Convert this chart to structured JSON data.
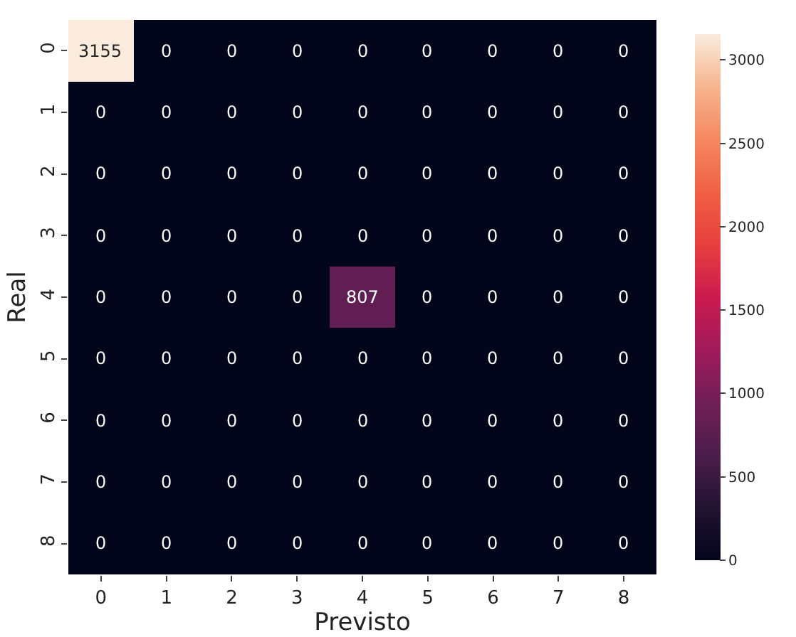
{
  "chart_data": {
    "type": "heatmap",
    "xlabel": "Previsto",
    "ylabel": "Real",
    "categories": [
      "0",
      "1",
      "2",
      "3",
      "4",
      "5",
      "6",
      "7",
      "8"
    ],
    "y_categories": [
      "0",
      "1",
      "2",
      "3",
      "4",
      "5",
      "6",
      "7",
      "8"
    ],
    "cells": [
      [
        3155,
        0,
        0,
        0,
        0,
        0,
        0,
        0,
        0
      ],
      [
        0,
        0,
        0,
        0,
        0,
        0,
        0,
        0,
        0
      ],
      [
        0,
        0,
        0,
        0,
        0,
        0,
        0,
        0,
        0
      ],
      [
        0,
        0,
        0,
        0,
        0,
        0,
        0,
        0,
        0
      ],
      [
        0,
        0,
        0,
        0,
        807,
        0,
        0,
        0,
        0
      ],
      [
        0,
        0,
        0,
        0,
        0,
        0,
        0,
        0,
        0
      ],
      [
        0,
        0,
        0,
        0,
        0,
        0,
        0,
        0,
        0
      ],
      [
        0,
        0,
        0,
        0,
        0,
        0,
        0,
        0,
        0
      ],
      [
        0,
        0,
        0,
        0,
        0,
        0,
        0,
        0,
        0
      ]
    ],
    "data_labels": true,
    "clim": [
      0,
      3155
    ],
    "cticks": [
      0,
      500,
      1000,
      1500,
      2000,
      2500,
      3000
    ]
  }
}
